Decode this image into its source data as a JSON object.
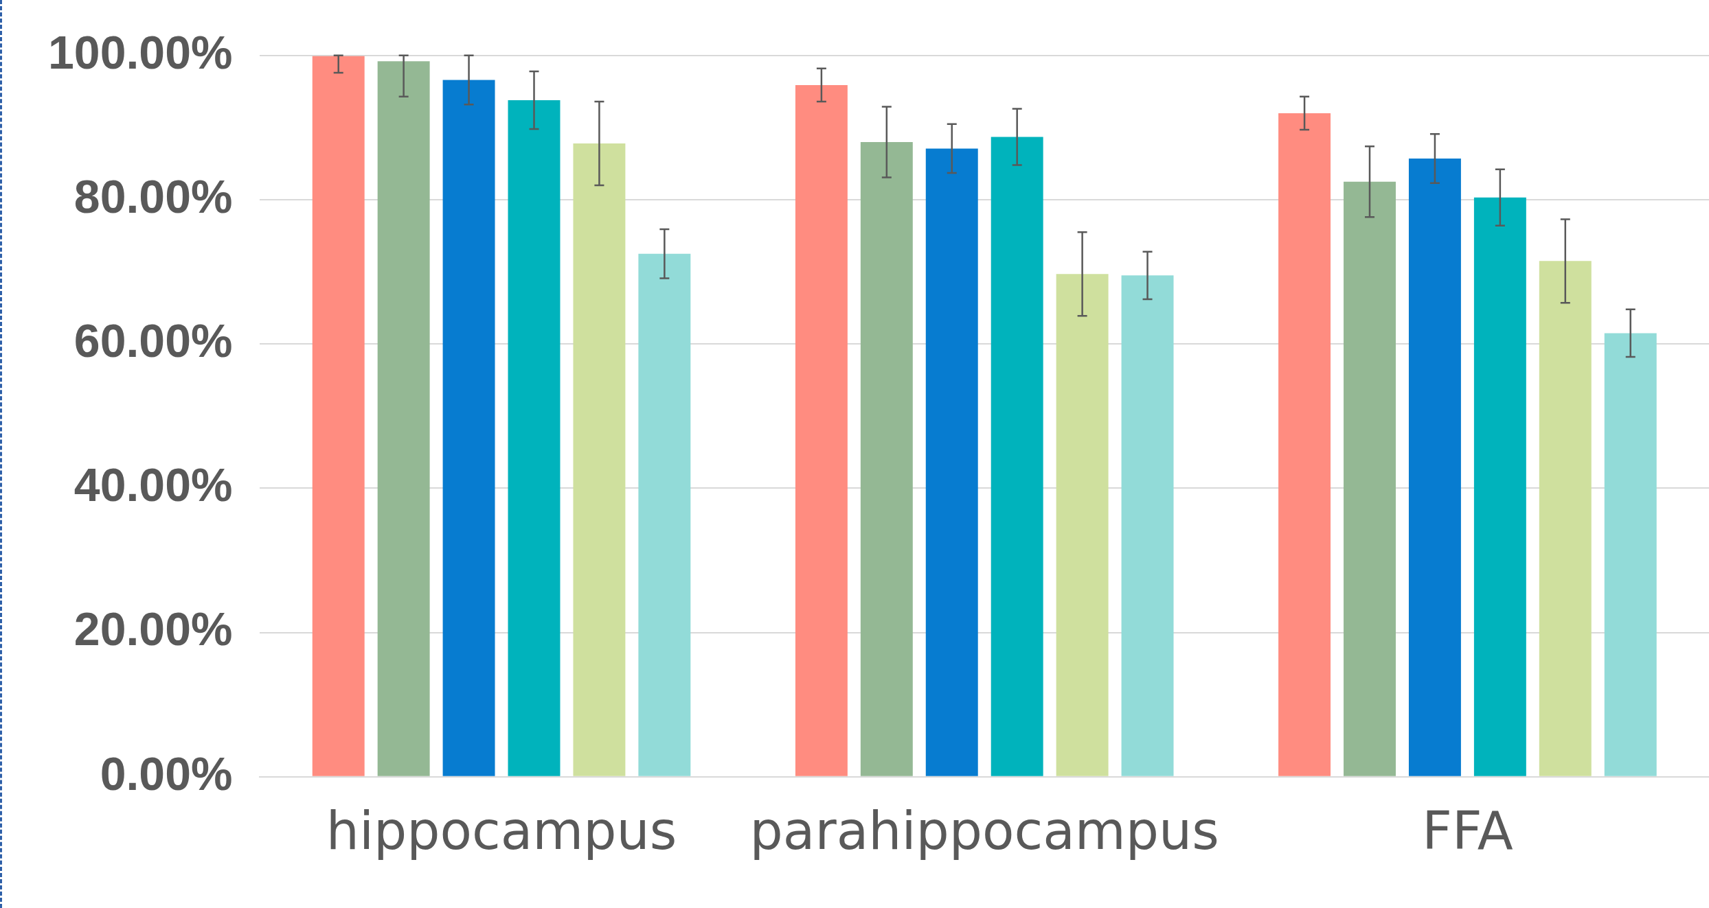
{
  "chart_data": {
    "type": "bar",
    "categories": [
      "hippocampus",
      "parahippocampus",
      "FFA"
    ],
    "series": [
      {
        "color": "#ff8c80",
        "values": [
          99.9,
          95.9,
          92.0
        ],
        "errors": [
          [
            97.6,
            100
          ],
          2.3,
          2.3
        ]
      },
      {
        "color": "#94b894",
        "values": [
          99.2,
          88.0,
          82.5
        ],
        "errors": [
          [
            94.3,
            100
          ],
          4.9,
          4.9
        ]
      },
      {
        "color": "#077cd0",
        "values": [
          96.6,
          87.1,
          85.7
        ],
        "errors": [
          3.4,
          3.4,
          3.4
        ]
      },
      {
        "color": "#00b3bc",
        "values": [
          93.8,
          88.7,
          80.3
        ],
        "errors": [
          4.0,
          3.9,
          3.9
        ]
      },
      {
        "color": "#cfe09e",
        "values": [
          87.8,
          69.7,
          71.5
        ],
        "errors": [
          5.8,
          5.8,
          5.8
        ]
      },
      {
        "color": "#92dbd8",
        "values": [
          72.5,
          69.5,
          61.5
        ],
        "errors": [
          3.4,
          3.3,
          3.3
        ]
      }
    ],
    "ylim": [
      0,
      100
    ],
    "yticks": [
      {
        "value": 0,
        "label": "0.00%"
      },
      {
        "value": 20,
        "label": "20.00%"
      },
      {
        "value": 40,
        "label": "40.00%"
      },
      {
        "value": 60,
        "label": "60.00%"
      },
      {
        "value": 80,
        "label": "80.00%"
      },
      {
        "value": 100,
        "label": "100.00%"
      }
    ],
    "grid": "y",
    "legend": false
  }
}
